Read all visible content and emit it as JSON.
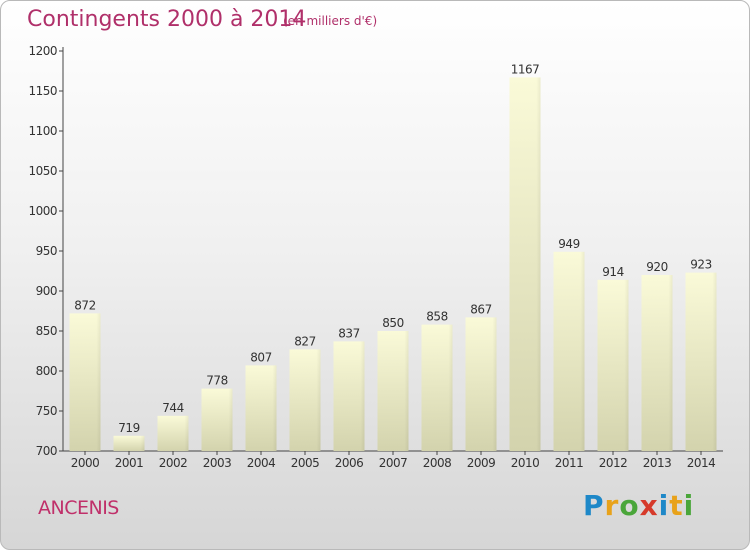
{
  "header": {
    "title": "Contingents 2000 à 2014",
    "subtitle": "(en milliers d'€)"
  },
  "footer": {
    "commune": "ANCENIS",
    "brand_letters": [
      "P",
      "r",
      "o",
      "x",
      "i",
      "t",
      "i"
    ],
    "brand_colors": [
      "#1e88c8",
      "#e8a21a",
      "#4aa63a",
      "#d63a2a",
      "#1e88c8",
      "#e8a21a",
      "#4aa63a"
    ]
  },
  "chart_data": {
    "type": "bar",
    "categories": [
      "2000",
      "2001",
      "2002",
      "2003",
      "2004",
      "2005",
      "2006",
      "2007",
      "2008",
      "2009",
      "2010",
      "2011",
      "2012",
      "2013",
      "2014"
    ],
    "values": [
      872,
      719,
      744,
      778,
      807,
      827,
      837,
      850,
      858,
      867,
      1167,
      949,
      914,
      920,
      923
    ],
    "ylim": [
      700,
      1200
    ],
    "yticks": [
      700,
      750,
      800,
      850,
      900,
      950,
      1000,
      1050,
      1100,
      1150,
      1200
    ],
    "grid": false,
    "colors": {
      "bar_top": "#fafad8",
      "bar_bottom": "#d3d3ad",
      "label": "#333333"
    }
  }
}
